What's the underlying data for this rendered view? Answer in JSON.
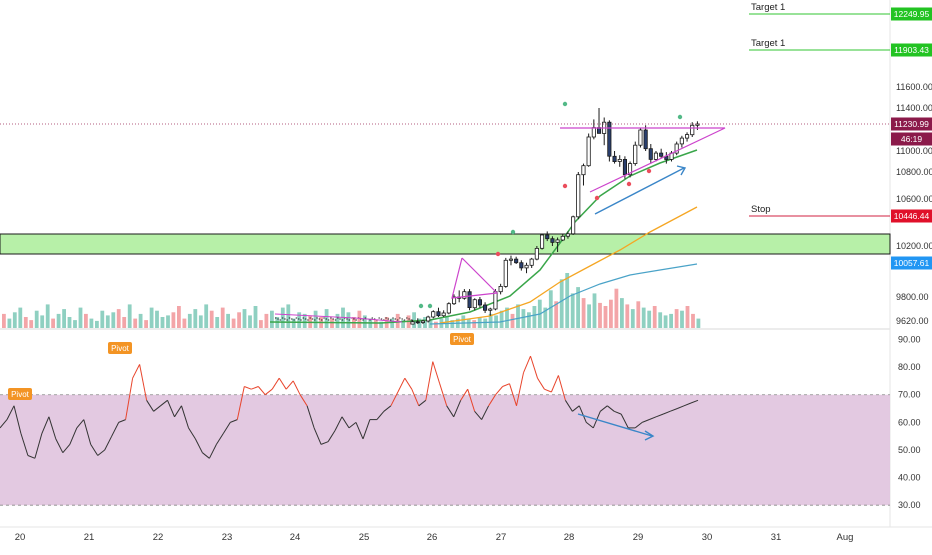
{
  "colors": {
    "bull": "#53b987",
    "bear": "#eb4d5c",
    "volume_bull": "#8fd0c1",
    "volume_bear": "#f3a5a8",
    "sma_green": "#3aa64a",
    "sma_orange": "#f5a623",
    "sma_blue": "#4aa3c8",
    "triangle": "#cc44cc",
    "arrow": "#3a86c8",
    "rsi_up": "#e8452c",
    "rsi_down": "#333333",
    "rsi_band": "#e1c6df",
    "zone": "#b7f0a8",
    "target_line": "#30c530",
    "stop_line": "#d02040",
    "pivot_badge": "#f39424",
    "current_price_badge": "#8b1a4a"
  },
  "price_axis": {
    "ticks": [
      "11600.00",
      "11400.00",
      "11000.00",
      "10800.00",
      "10600.00",
      "10200.00",
      "9800.00",
      "9620.00"
    ],
    "badges": [
      {
        "text": "12249.95",
        "kind": "target"
      },
      {
        "text": "11903.43",
        "kind": "target"
      },
      {
        "text": "11230.99",
        "kind": "current"
      },
      {
        "text": "46:19",
        "kind": "timer"
      },
      {
        "text": "10446.44",
        "kind": "stop"
      },
      {
        "text": "10057.61",
        "kind": "sma"
      }
    ]
  },
  "rsi_axis": {
    "ticks": [
      "90.00",
      "80.00",
      "70.00",
      "60.00",
      "50.00",
      "40.00",
      "30.00"
    ]
  },
  "time_axis": {
    "labels": [
      "20",
      "21",
      "22",
      "23",
      "24",
      "25",
      "26",
      "27",
      "28",
      "29",
      "30",
      "31",
      "Aug"
    ]
  },
  "annotations": {
    "target1_a": "Target 1",
    "target1_b": "Target 1",
    "stop": "Stop",
    "pivot_labels": [
      "Pivot",
      "Pivot",
      "Pivot"
    ]
  },
  "chart_data": [
    {
      "type": "candlestick",
      "pane": "price",
      "price_levels": {
        "target_1_upper": 12249.95,
        "target_1_lower": 11903.43,
        "current": 11230.99,
        "stop": 10446.44,
        "sma_blue_last": 10057.61,
        "zone_range": [
          10150,
          10300
        ]
      },
      "ylim": [
        9600,
        12320
      ],
      "x_start": "20",
      "x_end": "Aug",
      "candles_ohlc_approx": [
        [
          9600,
          9630,
          9590,
          9615
        ],
        [
          9615,
          9640,
          9600,
          9610
        ],
        [
          9610,
          9630,
          9595,
          9620
        ],
        [
          9620,
          9660,
          9610,
          9650
        ],
        [
          9650,
          9700,
          9640,
          9690
        ],
        [
          9690,
          9720,
          9650,
          9660
        ],
        [
          9660,
          9700,
          9650,
          9680
        ],
        [
          9680,
          9760,
          9670,
          9750
        ],
        [
          9750,
          9820,
          9740,
          9800
        ],
        [
          9800,
          9850,
          9760,
          9790
        ],
        [
          9790,
          9860,
          9780,
          9840
        ],
        [
          9840,
          9860,
          9700,
          9720
        ],
        [
          9720,
          9790,
          9700,
          9780
        ],
        [
          9780,
          9800,
          9720,
          9740
        ],
        [
          9740,
          9760,
          9680,
          9700
        ],
        [
          9700,
          9720,
          9660,
          9710
        ],
        [
          9710,
          9860,
          9700,
          9840
        ],
        [
          9840,
          9900,
          9820,
          9880
        ],
        [
          9880,
          10100,
          9870,
          10080
        ],
        [
          10080,
          10120,
          10040,
          10090
        ],
        [
          10090,
          10110,
          10050,
          10060
        ],
        [
          10060,
          10080,
          10000,
          10020
        ],
        [
          10020,
          10060,
          9980,
          10040
        ],
        [
          10040,
          10100,
          10020,
          10090
        ],
        [
          10090,
          10200,
          10080,
          10180
        ],
        [
          10180,
          10300,
          10170,
          10290
        ],
        [
          10290,
          10320,
          10240,
          10260
        ],
        [
          10260,
          10280,
          10200,
          10230
        ],
        [
          10230,
          10270,
          10150,
          10250
        ],
        [
          10250,
          10300,
          10240,
          10280
        ],
        [
          10280,
          10320,
          10260,
          10300
        ],
        [
          10300,
          10450,
          10290,
          10440
        ],
        [
          10440,
          10800,
          10420,
          10780
        ],
        [
          10780,
          10880,
          10700,
          10860
        ],
        [
          10860,
          11150,
          10850,
          11120
        ],
        [
          11120,
          11280,
          11100,
          11200
        ],
        [
          11200,
          11400,
          11150,
          11150
        ],
        [
          11150,
          11300,
          11050,
          11250
        ],
        [
          11250,
          11270,
          10900,
          10950
        ],
        [
          10950,
          11000,
          10880,
          10900
        ],
        [
          10900,
          10960,
          10850,
          10920
        ],
        [
          10920,
          10950,
          10750,
          10780
        ],
        [
          10780,
          10900,
          10760,
          10880
        ],
        [
          10880,
          11080,
          10860,
          11050
        ],
        [
          11050,
          11200,
          11030,
          11180
        ],
        [
          11180,
          11220,
          11000,
          11020
        ],
        [
          11020,
          11060,
          10880,
          10920
        ],
        [
          10920,
          11000,
          10900,
          10980
        ],
        [
          10980,
          11020,
          10930,
          10950
        ],
        [
          10950,
          10990,
          10880,
          10920
        ],
        [
          10920,
          11000,
          10900,
          10980
        ],
        [
          10980,
          11080,
          10960,
          11060
        ],
        [
          11060,
          11130,
          11030,
          11110
        ],
        [
          11110,
          11160,
          11080,
          11140
        ],
        [
          11140,
          11250,
          11120,
          11220
        ],
        [
          11220,
          11260,
          11180,
          11231
        ]
      ],
      "volume_approx": [
        18,
        12,
        20,
        26,
        14,
        10,
        22,
        16,
        30,
        12,
        18,
        24,
        14,
        10,
        26,
        18,
        12,
        9,
        22,
        16,
        20,
        24,
        14,
        30,
        12,
        18,
        10,
        26,
        22,
        14,
        16,
        20,
        28,
        12,
        18,
        24,
        16,
        30,
        22,
        14,
        26,
        18,
        12,
        20,
        24,
        16,
        28,
        10,
        18,
        22,
        14,
        26,
        30,
        12,
        20,
        18,
        16,
        22,
        14,
        24,
        12,
        18,
        26,
        20,
        14,
        22,
        16,
        12,
        10,
        8,
        14,
        12,
        18,
        10,
        16,
        20,
        12,
        14,
        10,
        8,
        12,
        14,
        10,
        12,
        16,
        12,
        10,
        14,
        12,
        18,
        16,
        22,
        26,
        18,
        30,
        24,
        20,
        28,
        36,
        26,
        48,
        34,
        62,
        70,
        44,
        52,
        38,
        30,
        44,
        32,
        28,
        36,
        50,
        38,
        30,
        24,
        34,
        26,
        22,
        28,
        20,
        16,
        18,
        24,
        22,
        28,
        18,
        12
      ],
      "series": [
        {
          "name": "sma_green"
        },
        {
          "name": "sma_orange"
        },
        {
          "name": "sma_blue"
        }
      ]
    },
    {
      "type": "line",
      "pane": "rsi",
      "ylim": [
        25,
        92
      ],
      "bands": [
        30,
        70
      ],
      "values": [
        58,
        61,
        66,
        56,
        48,
        47,
        56,
        62,
        54,
        49,
        52,
        58,
        61,
        52,
        48,
        50,
        55,
        60,
        61,
        76,
        81,
        68,
        64,
        66,
        68,
        62,
        66,
        58,
        54,
        49,
        47,
        52,
        56,
        60,
        61,
        73,
        72,
        73,
        70,
        72,
        76,
        72,
        75,
        70,
        66,
        58,
        52,
        53,
        57,
        62,
        58,
        60,
        54,
        61,
        61,
        64,
        66,
        71,
        76,
        72,
        66,
        68,
        82,
        74,
        66,
        62,
        68,
        72,
        64,
        61,
        66,
        70,
        73,
        74,
        66,
        78,
        84,
        76,
        72,
        71,
        77,
        68,
        64,
        66,
        60,
        58,
        64,
        66,
        64,
        63,
        58,
        58,
        60,
        61,
        62,
        63,
        64,
        65,
        66,
        67,
        68
      ]
    }
  ]
}
